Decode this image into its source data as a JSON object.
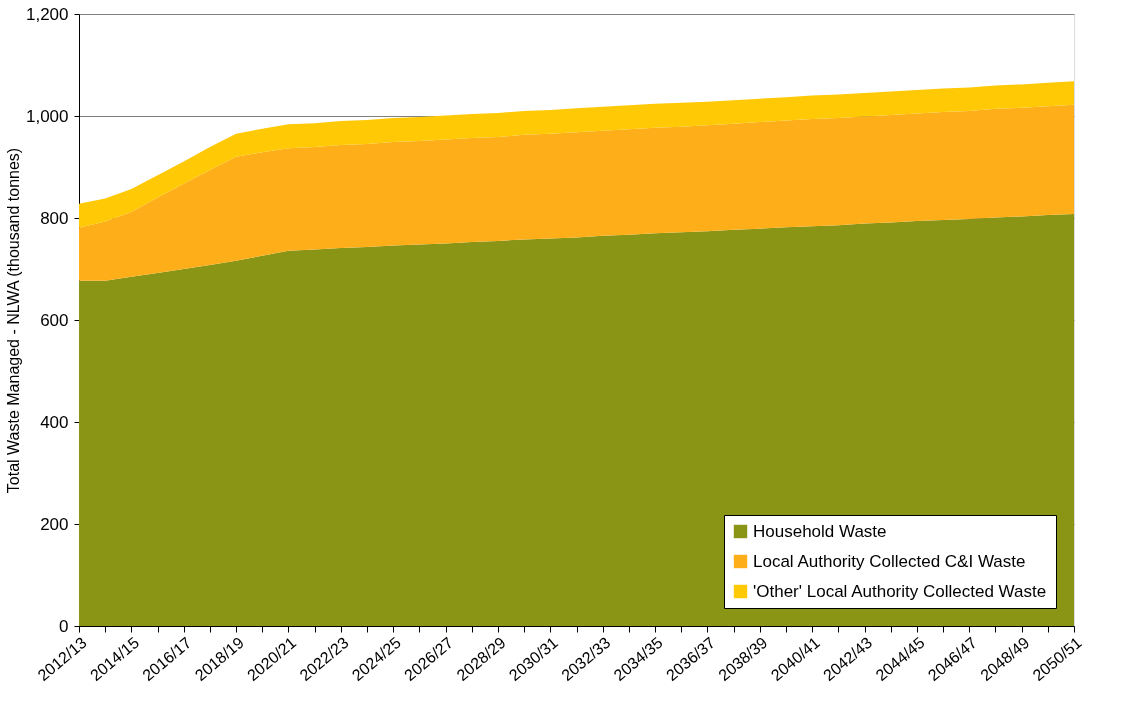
{
  "chart_data": {
    "type": "area",
    "stacked": true,
    "ylabel": "Total Waste Managed - NLWA (thousand tonnes)",
    "categories": [
      "2012/13",
      null,
      "2014/15",
      null,
      "2016/17",
      null,
      "2018/19",
      null,
      "2020/21",
      null,
      "2022/23",
      null,
      "2024/25",
      null,
      "2026/27",
      null,
      "2028/29",
      null,
      "2030/31",
      null,
      "2032/33",
      null,
      "2034/35",
      null,
      "2036/37",
      null,
      "2038/39",
      null,
      "2040/41",
      null,
      "2042/43",
      null,
      "2044/45",
      null,
      "2046/47",
      null,
      "2048/49",
      null,
      "2050/51"
    ],
    "series": [
      {
        "name": "Household Waste",
        "color": "#8a9415",
        "values": [
          677,
          677,
          685,
          692,
          700,
          708,
          716,
          726,
          736,
          738,
          741,
          743,
          746,
          748,
          750,
          753,
          755,
          758,
          760,
          762,
          765,
          767,
          770,
          772,
          774,
          777,
          779,
          782,
          784,
          786,
          789,
          791,
          794,
          796,
          798,
          801,
          803,
          806,
          808
        ]
      },
      {
        "name": "Local Authority Collected C&I Waste",
        "color": "#fdae19",
        "values": [
          104,
          116,
          127,
          148,
          167,
          186,
          204,
          203,
          201,
          201,
          202,
          202,
          203,
          203,
          204,
          204,
          204,
          205,
          205,
          206,
          206,
          207,
          207,
          207,
          208,
          208,
          209,
          209,
          210,
          210,
          210,
          211,
          211,
          212,
          212,
          213,
          213,
          213,
          214
        ]
      },
      {
        "name": "'Other' Local Authority Collected Waste",
        "color": "#ffc905",
        "values": [
          47,
          45,
          45,
          44,
          44,
          45,
          45,
          46,
          47,
          47,
          47,
          47,
          47,
          47,
          47,
          47,
          47,
          47,
          47,
          47,
          47,
          47,
          47,
          47,
          46,
          46,
          46,
          46,
          46,
          46,
          46,
          46,
          46,
          46,
          46,
          46,
          46,
          46,
          46
        ]
      }
    ],
    "ylim": [
      0,
      1200
    ],
    "yticks": [
      0,
      200,
      400,
      600,
      800,
      {
        "value": 1000,
        "label": "1,000"
      },
      {
        "value": 1200,
        "label": "1,200"
      }
    ],
    "grid": "y",
    "legend": "bottom right"
  }
}
